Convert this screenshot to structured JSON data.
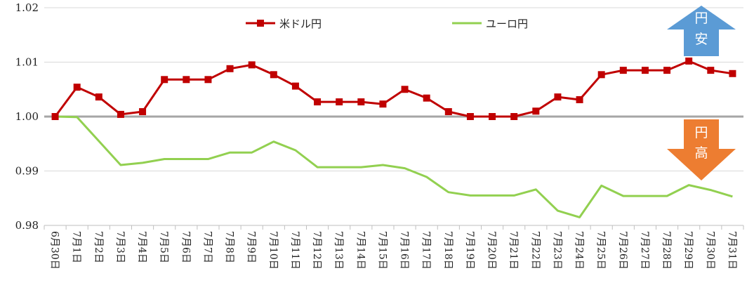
{
  "chart_data": {
    "type": "line",
    "title": "",
    "xlabel": "",
    "ylabel": "",
    "categories": [
      "6月30日",
      "7月1日",
      "7月2日",
      "7月3日",
      "7月4日",
      "7月5日",
      "7月6日",
      "7月7日",
      "7月8日",
      "7月9日",
      "7月10日",
      "7月11日",
      "7月12日",
      "7月13日",
      "7月14日",
      "7月15日",
      "7月16日",
      "7月17日",
      "7月18日",
      "7月19日",
      "7月20日",
      "7月21日",
      "7月22日",
      "7月23日",
      "7月24日",
      "7月25日",
      "7月26日",
      "7月27日",
      "7月28日",
      "7月29日",
      "7月30日",
      "7月31日"
    ],
    "ylim": [
      0.98,
      1.02
    ],
    "yticks": [
      "0.98",
      "0.99",
      "1.00",
      "1.01",
      "1.02"
    ],
    "reference_line": 1.0,
    "grid": "horizontal",
    "legend_position": "top",
    "series": [
      {
        "name": "米ドル円",
        "color": "#c00000",
        "marker": "square",
        "values": [
          1.0,
          1.0054,
          1.0036,
          1.0004,
          1.0009,
          1.0068,
          1.0068,
          1.0068,
          1.0088,
          1.0095,
          1.0077,
          1.0056,
          1.0027,
          1.0027,
          1.0027,
          1.0023,
          1.005,
          1.0034,
          1.0009,
          1.0,
          1.0,
          1.0,
          1.001,
          1.0036,
          1.0031,
          1.0077,
          1.0085,
          1.0085,
          1.0085,
          1.0102,
          1.0085,
          1.0079
        ]
      },
      {
        "name": "ユーロ円",
        "color": "#92d050",
        "marker": "none",
        "values": [
          1.0,
          0.9999,
          0.9955,
          0.9911,
          0.9915,
          0.9922,
          0.9922,
          0.9922,
          0.9934,
          0.9934,
          0.9954,
          0.9938,
          0.9907,
          0.9907,
          0.9907,
          0.9911,
          0.9905,
          0.9889,
          0.9861,
          0.9855,
          0.9855,
          0.9855,
          0.9866,
          0.9827,
          0.9815,
          0.9873,
          0.9854,
          0.9854,
          0.9854,
          0.9874,
          0.9865,
          0.9853
        ]
      }
    ],
    "annotations": [
      {
        "text": "円安",
        "direction": "up",
        "color": "#5b9bd5"
      },
      {
        "text": "円高",
        "direction": "down",
        "color": "#ed7d31"
      }
    ]
  }
}
